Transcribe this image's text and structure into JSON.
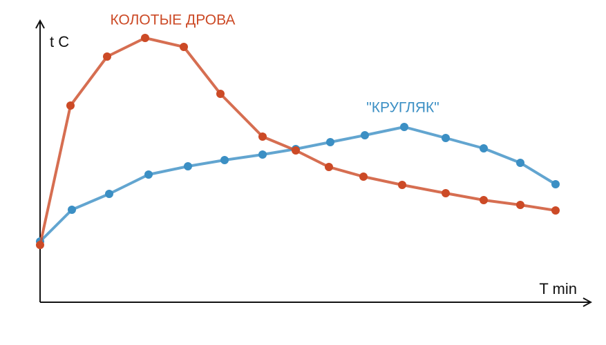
{
  "chart_data": {
    "type": "line",
    "x_label": "T min",
    "y_label": "t C",
    "xlim": [
      0,
      797
    ],
    "ylim": [
      0,
      408
    ],
    "series": [
      {
        "name": "КОЛОТЫЕ ДРОВА",
        "color": "#cc4a26",
        "x": [
          0,
          44,
          97,
          152,
          208,
          261,
          322,
          370,
          418,
          468,
          524,
          587,
          642,
          695,
          746
        ],
        "values": [
          83,
          285,
          356,
          383,
          370,
          302,
          240,
          220,
          196,
          182,
          170,
          158,
          148,
          141,
          133
        ]
      },
      {
        "name": "\"КРУГЛЯК\"",
        "color": "#3b8fc4",
        "x": [
          0,
          46,
          100,
          157,
          214,
          267,
          322,
          370,
          420,
          470,
          527,
          587,
          642,
          695,
          746
        ],
        "values": [
          88,
          134,
          157,
          185,
          197,
          206,
          214,
          222,
          232,
          242,
          254,
          238,
          223,
          202,
          171
        ]
      }
    ]
  }
}
